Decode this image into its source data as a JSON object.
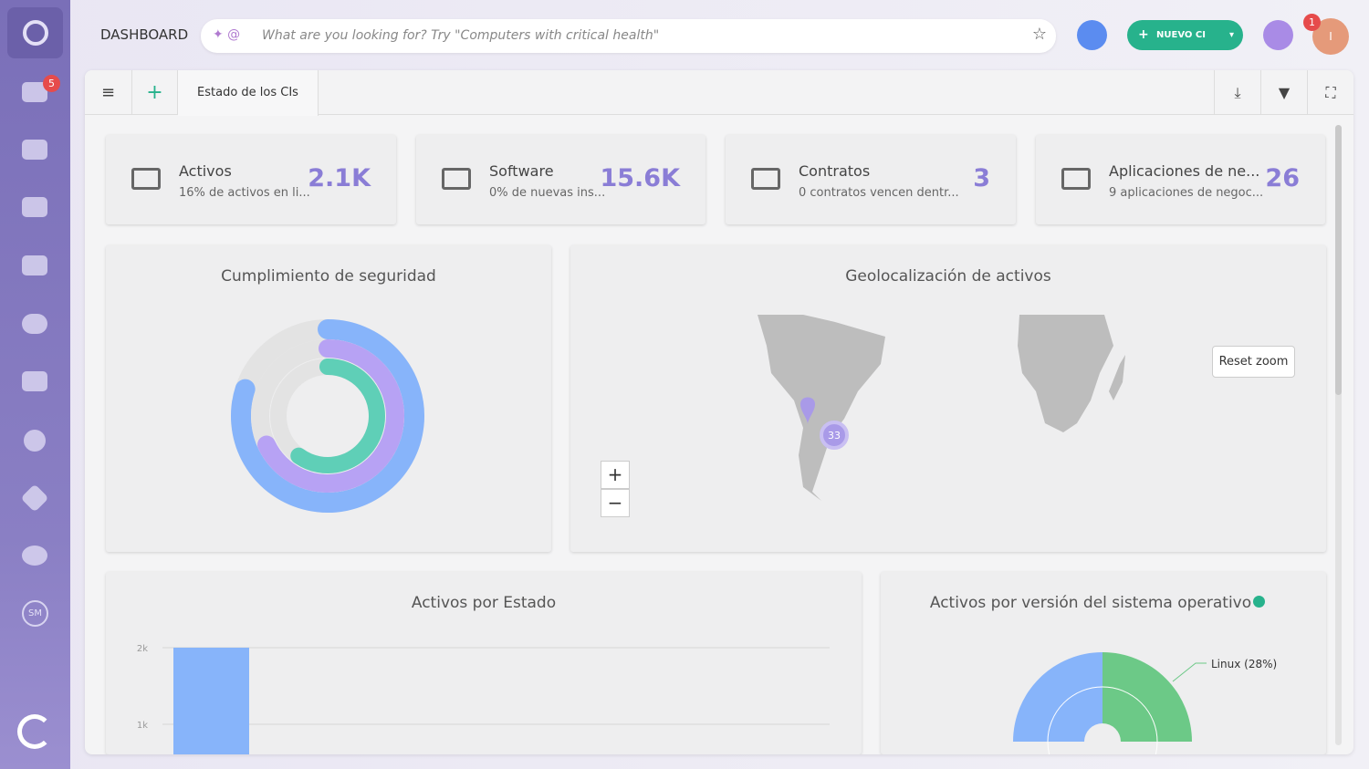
{
  "header": {
    "title": "DASHBOARD",
    "search_placeholder": "What are you looking for? Try \"Computers with critical health\"",
    "new_button": "NUEVO CI",
    "notification_count": "1",
    "avatar": "I"
  },
  "sidebar": {
    "badge": "5",
    "logo": "SM"
  },
  "tabs": {
    "active": "Estado de los CIs"
  },
  "cards": [
    {
      "title": "Activos",
      "subtitle": "16% de activos en li...",
      "value": "2.1K"
    },
    {
      "title": "Software",
      "subtitle": "0% de nuevas ins...",
      "value": "15.6K"
    },
    {
      "title": "Contratos",
      "subtitle": "0 contratos vencen dentr...",
      "value": "3"
    },
    {
      "title": "Aplicaciones de ne...",
      "subtitle": "9 aplicaciones de negoc...",
      "value": "26"
    }
  ],
  "security": {
    "title": "Cumplimiento de seguridad",
    "rings": [
      {
        "color": "#87b4fa",
        "value": 80
      },
      {
        "color": "#b7a2f4",
        "value": 68
      },
      {
        "color": "#5fcfb7",
        "value": 60
      }
    ],
    "max": 100
  },
  "geo": {
    "title": "Geolocalización de activos",
    "cluster": "33",
    "reset": "Reset zoom",
    "zoom_in": "+",
    "zoom_out": "−"
  },
  "status_chart": {
    "type": "bar",
    "title": "Activos por Estado",
    "values": [
      2000
    ],
    "color": "#87b4fa",
    "ylim": [
      0,
      2000
    ],
    "yticks": [
      {
        "value": 1000,
        "label": "1k"
      },
      {
        "value": 2000,
        "label": "2k"
      }
    ]
  },
  "os_chart": {
    "title": "Activos por versión del sistema operativo",
    "label": "Linux (28%)"
  }
}
